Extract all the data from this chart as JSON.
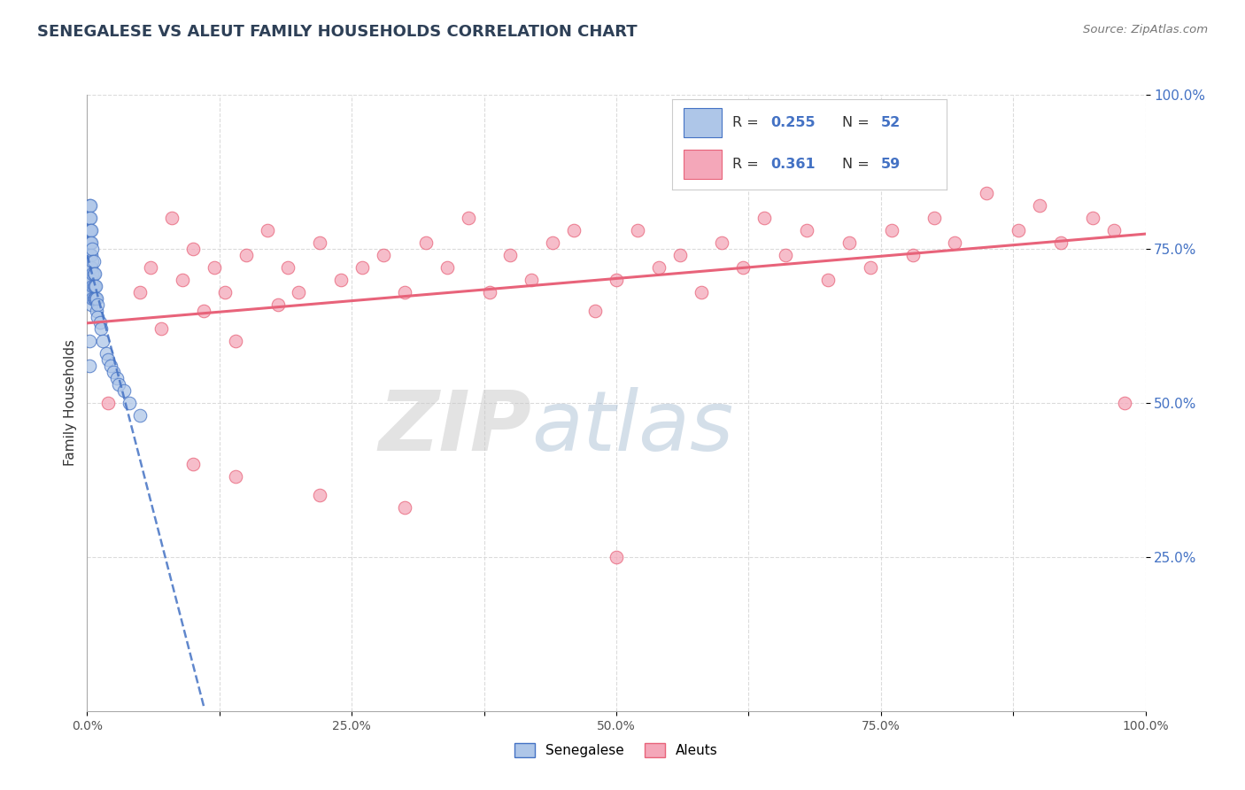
{
  "title": "SENEGALESE VS ALEUT FAMILY HOUSEHOLDS CORRELATION CHART",
  "source_text": "Source: ZipAtlas.com",
  "ylabel": "Family Households",
  "xlim": [
    0,
    1
  ],
  "ylim": [
    0,
    1
  ],
  "xtick_labels": [
    "0.0%",
    "",
    "25.0%",
    "",
    "50.0%",
    "",
    "75.0%",
    "",
    "100.0%"
  ],
  "xtick_positions": [
    0,
    0.125,
    0.25,
    0.375,
    0.5,
    0.625,
    0.75,
    0.875,
    1.0
  ],
  "ytick_labels": [
    "25.0%",
    "50.0%",
    "75.0%",
    "100.0%"
  ],
  "ytick_positions": [
    0.25,
    0.5,
    0.75,
    1.0
  ],
  "senegalese_color": "#aec6e8",
  "aleut_color": "#f4a7b9",
  "senegalese_line_color": "#4472c4",
  "aleut_line_color": "#e8637a",
  "legend_R_senegalese": "0.255",
  "legend_N_senegalese": "52",
  "legend_R_aleut": "0.361",
  "legend_N_aleut": "59",
  "watermark_zip": "ZIP",
  "watermark_atlas": "atlas",
  "senegalese_x": [
    0.002,
    0.002,
    0.002,
    0.002,
    0.002,
    0.003,
    0.003,
    0.003,
    0.003,
    0.003,
    0.003,
    0.003,
    0.003,
    0.004,
    0.004,
    0.004,
    0.004,
    0.004,
    0.004,
    0.004,
    0.005,
    0.005,
    0.005,
    0.005,
    0.005,
    0.006,
    0.006,
    0.006,
    0.006,
    0.007,
    0.007,
    0.007,
    0.008,
    0.008,
    0.009,
    0.009,
    0.01,
    0.01,
    0.012,
    0.013,
    0.015,
    0.018,
    0.02,
    0.022,
    0.025,
    0.028,
    0.03,
    0.035,
    0.04,
    0.05,
    0.002,
    0.002
  ],
  "senegalese_y": [
    0.82,
    0.8,
    0.78,
    0.76,
    0.74,
    0.82,
    0.8,
    0.78,
    0.76,
    0.74,
    0.72,
    0.7,
    0.68,
    0.78,
    0.76,
    0.74,
    0.72,
    0.7,
    0.68,
    0.66,
    0.75,
    0.73,
    0.71,
    0.69,
    0.67,
    0.73,
    0.71,
    0.69,
    0.67,
    0.71,
    0.69,
    0.67,
    0.69,
    0.67,
    0.67,
    0.65,
    0.66,
    0.64,
    0.63,
    0.62,
    0.6,
    0.58,
    0.57,
    0.56,
    0.55,
    0.54,
    0.53,
    0.52,
    0.5,
    0.48,
    0.6,
    0.56
  ],
  "aleut_x": [
    0.02,
    0.05,
    0.06,
    0.07,
    0.08,
    0.09,
    0.1,
    0.11,
    0.12,
    0.13,
    0.14,
    0.15,
    0.17,
    0.18,
    0.19,
    0.2,
    0.22,
    0.24,
    0.26,
    0.28,
    0.3,
    0.32,
    0.34,
    0.36,
    0.38,
    0.4,
    0.42,
    0.44,
    0.46,
    0.48,
    0.5,
    0.52,
    0.54,
    0.56,
    0.58,
    0.6,
    0.62,
    0.64,
    0.66,
    0.68,
    0.7,
    0.72,
    0.74,
    0.76,
    0.78,
    0.8,
    0.82,
    0.85,
    0.88,
    0.9,
    0.92,
    0.95,
    0.97,
    0.98,
    0.1,
    0.14,
    0.22,
    0.3,
    0.5
  ],
  "aleut_y": [
    0.5,
    0.68,
    0.72,
    0.62,
    0.8,
    0.7,
    0.75,
    0.65,
    0.72,
    0.68,
    0.6,
    0.74,
    0.78,
    0.66,
    0.72,
    0.68,
    0.76,
    0.7,
    0.72,
    0.74,
    0.68,
    0.76,
    0.72,
    0.8,
    0.68,
    0.74,
    0.7,
    0.76,
    0.78,
    0.65,
    0.7,
    0.78,
    0.72,
    0.74,
    0.68,
    0.76,
    0.72,
    0.8,
    0.74,
    0.78,
    0.7,
    0.76,
    0.72,
    0.78,
    0.74,
    0.8,
    0.76,
    0.84,
    0.78,
    0.82,
    0.76,
    0.8,
    0.78,
    0.5,
    0.4,
    0.38,
    0.35,
    0.33,
    0.25
  ],
  "background_color": "#ffffff",
  "grid_color": "#d8d8d8",
  "title_color": "#2e4057",
  "ytick_color": "#4472c4"
}
